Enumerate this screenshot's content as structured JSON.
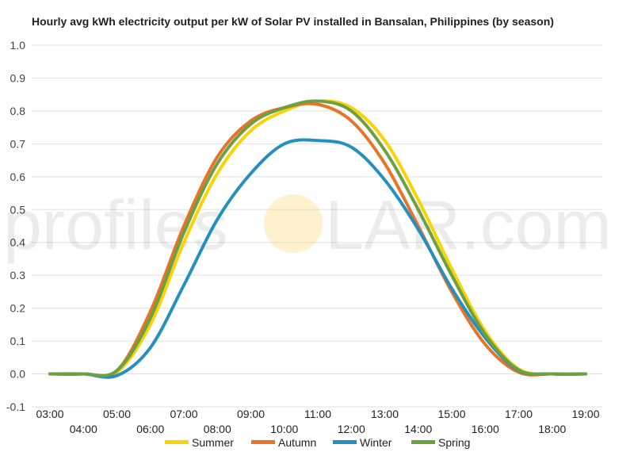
{
  "chart_data": {
    "type": "line",
    "title": "Hourly avg kWh electricity output per kW of Solar PV installed in Bansalan, Philippines (by season)",
    "xlabel": "",
    "ylabel": "",
    "x": [
      "03:00",
      "04:00",
      "05:00",
      "06:00",
      "07:00",
      "08:00",
      "09:00",
      "10:00",
      "11:00",
      "12:00",
      "13:00",
      "14:00",
      "15:00",
      "16:00",
      "17:00",
      "18:00",
      "19:00"
    ],
    "ylim": [
      -0.1,
      1.0
    ],
    "y_ticks": [
      "1.0",
      "0.9",
      "0.8",
      "0.7",
      "0.6",
      "0.5",
      "0.4",
      "0.3",
      "0.2",
      "0.1",
      "0.0",
      "-0.1"
    ],
    "grid": true,
    "legend_position": "bottom",
    "series": [
      {
        "name": "Summer",
        "color": "#f7d308",
        "values": [
          0.0,
          0.0,
          0.005,
          0.15,
          0.4,
          0.61,
          0.74,
          0.8,
          0.83,
          0.81,
          0.71,
          0.53,
          0.32,
          0.13,
          0.015,
          0.0,
          0.0
        ]
      },
      {
        "name": "Autumn",
        "color": "#e67529",
        "values": [
          0.0,
          0.0,
          0.01,
          0.19,
          0.45,
          0.66,
          0.77,
          0.81,
          0.82,
          0.77,
          0.64,
          0.45,
          0.25,
          0.09,
          0.005,
          0.0,
          0.0
        ]
      },
      {
        "name": "Winter",
        "color": "#2590bd",
        "values": [
          0.0,
          0.0,
          -0.005,
          0.08,
          0.27,
          0.47,
          0.61,
          0.7,
          0.71,
          0.69,
          0.59,
          0.44,
          0.26,
          0.11,
          0.01,
          0.0,
          0.0
        ]
      },
      {
        "name": "Spring",
        "color": "#6d9f43",
        "values": [
          0.0,
          0.0,
          0.01,
          0.17,
          0.43,
          0.64,
          0.76,
          0.81,
          0.83,
          0.8,
          0.68,
          0.5,
          0.3,
          0.12,
          0.012,
          0.0,
          0.0
        ]
      }
    ]
  },
  "watermark": {
    "text_left": "profiles",
    "text_right": "LAR.com",
    "sun_color": "#f7cf5c"
  }
}
